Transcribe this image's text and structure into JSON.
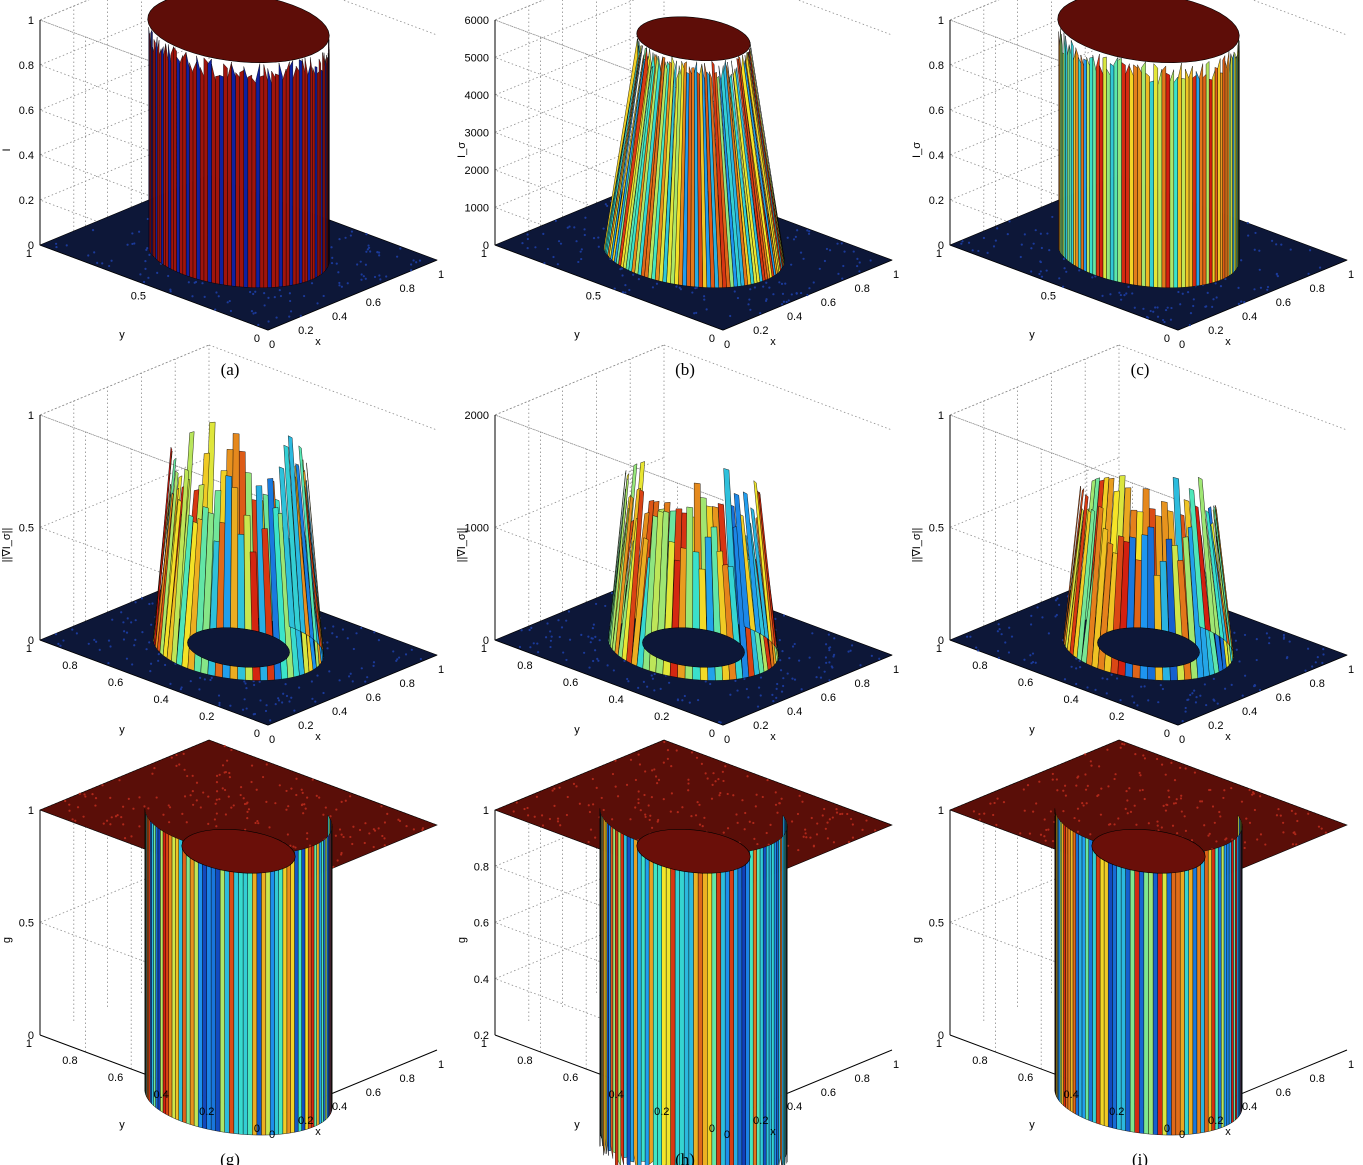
{
  "colors": {
    "low": "#0a1fb0",
    "mid": "#33e0c8",
    "midhigh": "#f2e629",
    "high": "#d11a10",
    "edge": "#000000",
    "grid": "#8c8c8c"
  },
  "chart_data": [
    {
      "type": "surface",
      "caption": "(a)",
      "zlabel": "I",
      "xlabel": "x",
      "ylabel": "y",
      "zlim": [
        0,
        1
      ],
      "zticks": [
        "0",
        "0.2",
        "0.4",
        "0.6",
        "0.8",
        "1"
      ],
      "xticks": [
        "0",
        "0.2",
        "0.4",
        "0.6",
        "0.8",
        "1"
      ],
      "yticks": [
        "0",
        "0.5",
        "1"
      ],
      "shape": "cylinder",
      "peak": 1
    },
    {
      "type": "surface",
      "caption": "(b)",
      "zlabel": "I_σ",
      "xlabel": "x",
      "ylabel": "y",
      "zlim": [
        0,
        6000
      ],
      "zticks": [
        "0",
        "1000",
        "2000",
        "3000",
        "4000",
        "5000",
        "6000"
      ],
      "xticks": [
        "0",
        "0.2",
        "0.4",
        "0.6",
        "0.8",
        "1"
      ],
      "yticks": [
        "0",
        "0.5",
        "1"
      ],
      "shape": "mound",
      "peak": 5800
    },
    {
      "type": "surface",
      "caption": "(c)",
      "zlabel": "I_σ",
      "xlabel": "x",
      "ylabel": "y",
      "zlim": [
        0,
        1
      ],
      "zticks": [
        "0",
        "0.2",
        "0.4",
        "0.6",
        "0.8",
        "1"
      ],
      "xticks": [
        "0",
        "0.2",
        "0.4",
        "0.6",
        "0.8",
        "1"
      ],
      "yticks": [
        "0",
        "0.5",
        "1"
      ],
      "shape": "cylinder",
      "peak": 1
    },
    {
      "type": "surface",
      "caption": "(d)",
      "zlabel": "||∇I_σ||",
      "xlabel": "x",
      "ylabel": "y",
      "zlim": [
        0,
        1
      ],
      "zticks": [
        "0",
        "0.5",
        "1"
      ],
      "xticks": [
        "0",
        "0.2",
        "0.4",
        "0.6",
        "0.8",
        "1"
      ],
      "yticks": [
        "0",
        "0.2",
        "0.4",
        "0.6",
        "0.8",
        "1"
      ],
      "shape": "ring",
      "peak": 0.9
    },
    {
      "type": "surface",
      "caption": "(e)",
      "zlabel": "||∇I_σ||",
      "xlabel": "x",
      "ylabel": "y",
      "zlim": [
        0,
        2000
      ],
      "zticks": [
        "0",
        "1000",
        "2000"
      ],
      "xticks": [
        "0",
        "0.2",
        "0.4",
        "0.6",
        "0.8",
        "1"
      ],
      "yticks": [
        "0",
        "0.2",
        "0.4",
        "0.6",
        "0.8",
        "1"
      ],
      "shape": "ring",
      "peak": 1500
    },
    {
      "type": "surface",
      "caption": "(f)",
      "zlabel": "||∇I_σ||",
      "xlabel": "x",
      "ylabel": "y",
      "zlim": [
        0,
        1
      ],
      "zticks": [
        "0",
        "0.5",
        "1"
      ],
      "xticks": [
        "0",
        "0.2",
        "0.4",
        "0.6",
        "0.8",
        "1"
      ],
      "yticks": [
        "0",
        "0.2",
        "0.4",
        "0.6",
        "0.8",
        "1"
      ],
      "shape": "ring",
      "peak": 0.7
    },
    {
      "type": "surface",
      "caption": "(g)",
      "zlabel": "g",
      "xlabel": "x",
      "ylabel": "y",
      "zlim": [
        0,
        1
      ],
      "zticks": [
        "0",
        "0.5",
        "1"
      ],
      "xticks": [
        "0",
        "0.2",
        "0.4",
        "0.6",
        "0.8",
        "1"
      ],
      "yticks": [
        "0",
        "0.2",
        "0.4",
        "0.6",
        "0.8",
        "1"
      ],
      "shape": "well",
      "peak": 1
    },
    {
      "type": "surface",
      "caption": "(h)",
      "zlabel": "g",
      "xlabel": "x",
      "ylabel": "y",
      "zlim": [
        0.2,
        1
      ],
      "zticks": [
        "0.2",
        "0.4",
        "0.6",
        "0.8",
        "1"
      ],
      "xticks": [
        "0",
        "0.2",
        "0.4",
        "0.6",
        "0.8",
        "1"
      ],
      "yticks": [
        "0",
        "0.2",
        "0.4",
        "0.6",
        "0.8",
        "1"
      ],
      "shape": "well",
      "peak": 1
    },
    {
      "type": "surface",
      "caption": "(i)",
      "zlabel": "g",
      "xlabel": "x",
      "ylabel": "y",
      "zlim": [
        0,
        1
      ],
      "zticks": [
        "0",
        "0.5",
        "1"
      ],
      "xticks": [
        "0",
        "0.2",
        "0.4",
        "0.6",
        "0.8",
        "1"
      ],
      "yticks": [
        "0",
        "0.2",
        "0.4",
        "0.6",
        "0.8",
        "1"
      ],
      "shape": "well",
      "peak": 1
    }
  ]
}
